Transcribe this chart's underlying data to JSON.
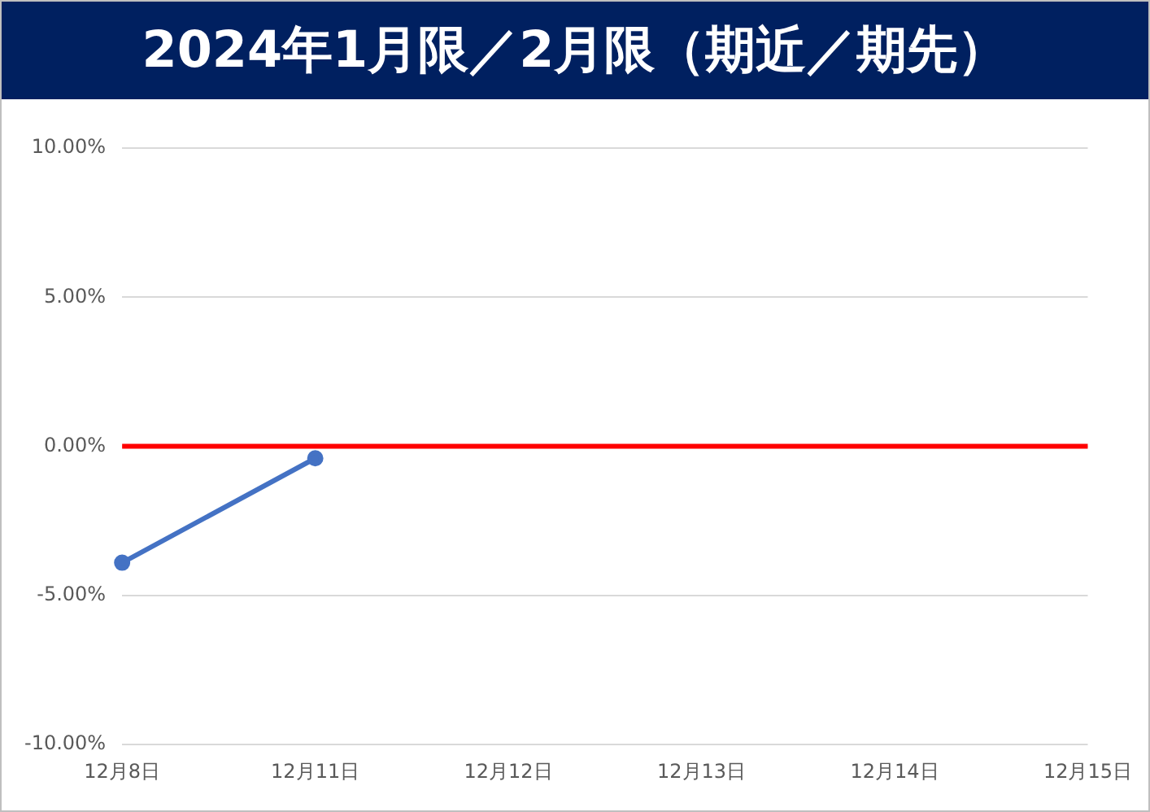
{
  "chart_data": {
    "type": "line",
    "title": "2024年1月限／2月限（期近／期先）",
    "categories": [
      "12月8日",
      "12月11日",
      "12月12日",
      "12月13日",
      "12月14日",
      "12月15日"
    ],
    "series": [
      {
        "color": "#4472c4",
        "values": [
          -3.9,
          -0.4,
          null,
          null,
          null,
          null
        ]
      }
    ],
    "ylim": [
      -10,
      10
    ],
    "yticks": [
      {
        "value": -10,
        "label": "-10.00%"
      },
      {
        "value": -5,
        "label": "-5.00%"
      },
      {
        "value": 0,
        "label": "0.00%"
      },
      {
        "value": 5,
        "label": "5.00%"
      },
      {
        "value": 10,
        "label": "10.00%"
      }
    ],
    "ref_lines": [
      {
        "axis": "y",
        "value": 0,
        "color": "#ff0000"
      }
    ],
    "grid": "y",
    "legend": false,
    "marker": "circle",
    "line_style": "solid"
  }
}
